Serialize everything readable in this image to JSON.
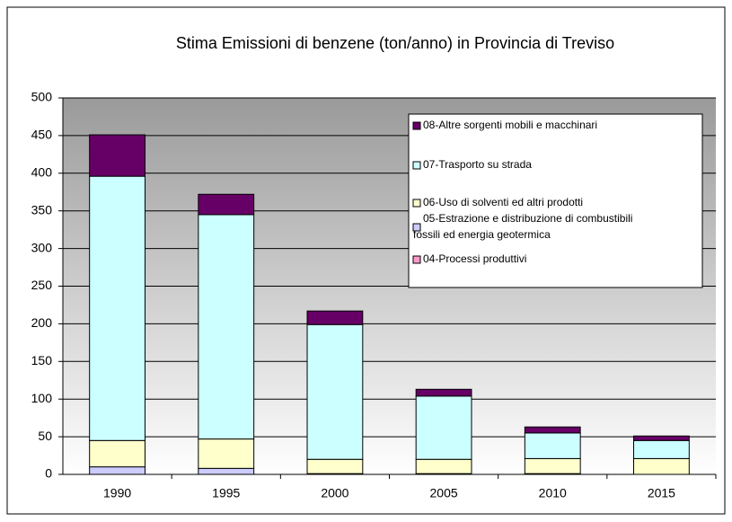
{
  "chart_data": {
    "type": "stacked_bar",
    "title": "Stima Emissioni di benzene (ton/anno) in Provincia di Treviso",
    "categories": [
      "1990",
      "1995",
      "2000",
      "2005",
      "2010",
      "2015"
    ],
    "series": [
      {
        "name": "04-Processi produttivi",
        "color": "#ff99cc",
        "values": [
          0,
          0,
          0,
          0,
          0,
          0
        ]
      },
      {
        "name": "05-Estrazione e distribuzione di combustibili\nfossili ed energia geotermica",
        "color": "#ccccff",
        "values": [
          10,
          8,
          1,
          1,
          1,
          0
        ]
      },
      {
        "name": "06-Uso di solventi ed altri prodotti",
        "color": "#ffffcc",
        "values": [
          35,
          39,
          19,
          19,
          20,
          21
        ]
      },
      {
        "name": "07-Trasporto su strada",
        "color": "#ccffff",
        "values": [
          351,
          298,
          179,
          84,
          34,
          24
        ]
      },
      {
        "name": "08-Altre sorgenti mobili e macchinari",
        "color": "#660066",
        "values": [
          55,
          27,
          18,
          9,
          8,
          6
        ]
      }
    ],
    "ylim": [
      0,
      500
    ],
    "yticks": [
      0,
      50,
      100,
      150,
      200,
      250,
      300,
      350,
      400,
      450,
      500
    ],
    "grid": true
  }
}
